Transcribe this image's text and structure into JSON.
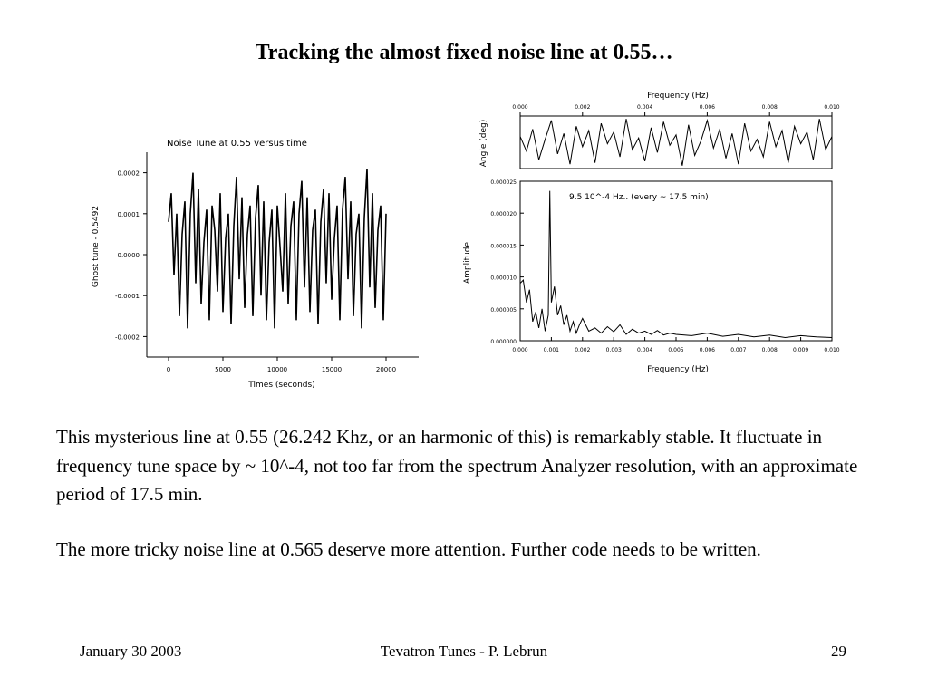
{
  "slide": {
    "title": "Tracking the almost fixed noise line at 0.55…",
    "paragraphs": [
      "This mysterious line at 0.55 (26.242 Khz, or an harmonic of this)  is remarkably stable.  It fluctuate in frequency tune space by ~ 10^-4, not too far from the spectrum Analyzer resolution,  with an approximate period of 17.5 min.",
      "The more tricky noise line at 0.565 deserve more attention.  Further code needs to be written."
    ],
    "footer": {
      "date": "January 30  2003",
      "center": "Tevatron Tunes - P. Lebrun",
      "page": "29"
    }
  },
  "chart_data": [
    {
      "type": "line",
      "title": "Noise Tune at 0.55 versus time",
      "xlabel": "Times (seconds)",
      "ylabel": "Ghost tune - 0.5492",
      "xlim": [
        -2000,
        23000
      ],
      "ylim": [
        -0.00025,
        0.00025
      ],
      "x_ticks": [
        0,
        5000,
        10000,
        15000,
        20000
      ],
      "x_tick_labels": [
        "0",
        "5000",
        "10000",
        "15000",
        "20000"
      ],
      "y_ticks": [
        0.0002,
        0.0001,
        0.0,
        -0.0001,
        -0.0002
      ],
      "y_tick_labels": [
        "0.0002",
        "0.0001",
        "0.0000",
        "-0.0001",
        "-0.0002"
      ],
      "grid": false,
      "series": [
        {
          "color": "#000000",
          "x": [
            0,
            250,
            500,
            750,
            1000,
            1250,
            1500,
            1750,
            2000,
            2250,
            2500,
            2750,
            3000,
            3250,
            3500,
            3750,
            4000,
            4250,
            4500,
            4750,
            5000,
            5250,
            5500,
            5750,
            6000,
            6250,
            6500,
            6750,
            7000,
            7250,
            7500,
            7750,
            8000,
            8250,
            8500,
            8750,
            9000,
            9250,
            9500,
            9750,
            10000,
            10250,
            10500,
            10750,
            11000,
            11250,
            11500,
            11750,
            12000,
            12250,
            12500,
            12750,
            13000,
            13250,
            13500,
            13750,
            14000,
            14250,
            14500,
            14750,
            15000,
            15250,
            15500,
            15750,
            16000,
            16250,
            16500,
            16750,
            17000,
            17250,
            17500,
            17750,
            18000,
            18250,
            18500,
            18750,
            19000,
            19250,
            19500,
            19750,
            20000
          ],
          "y": [
            8e-05,
            0.00015,
            -5e-05,
            0.0001,
            -0.00015,
            5e-05,
            0.00013,
            -0.00018,
            0.0001,
            0.0002,
            -7e-05,
            0.00016,
            -0.00012,
            3e-05,
            0.00011,
            -0.00016,
            0.00012,
            6e-05,
            -9e-05,
            0.00015,
            -0.00014,
            4e-05,
            0.0001,
            -0.00017,
            7e-05,
            0.00019,
            -6e-05,
            0.00014,
            -0.00013,
            5e-05,
            0.00012,
            -0.00015,
            9e-05,
            0.00017,
            -0.0001,
            0.00013,
            -0.00016,
            3e-05,
            0.00011,
            -0.00018,
            0.00012,
            2e-05,
            -9e-05,
            0.00015,
            -0.00012,
            7e-05,
            0.00013,
            -0.00016,
            0.0001,
            0.00018,
            -8e-05,
            0.00014,
            -0.00014,
            6e-05,
            0.00011,
            -0.00017,
            8e-05,
            0.00016,
            -7e-05,
            0.00015,
            -0.00011,
            4e-05,
            0.00012,
            -0.00016,
            0.00011,
            0.00019,
            -6e-05,
            0.00013,
            -0.00015,
            5e-05,
            0.0001,
            -0.00018,
            9e-05,
            0.00021,
            -8e-05,
            0.00015,
            -0.00013,
            6e-05,
            0.00012,
            -0.00016,
            0.0001
          ]
        }
      ]
    },
    {
      "type": "line",
      "title": "",
      "xlabel": "",
      "top_axis_label": "Frequency (Hz)",
      "ylabel": "Angle (deg)",
      "xlim": [
        0,
        0.01
      ],
      "top_ticks": [
        0,
        0.002,
        0.004,
        0.006,
        0.008,
        0.01
      ],
      "top_tick_labels": [
        "0.000",
        "0.002",
        "0.004",
        "0.006",
        "0.008",
        "0.010"
      ],
      "grid": false,
      "series": [
        {
          "color": "#000000",
          "x": [
            0,
            0.0002,
            0.0004,
            0.0006,
            0.0008,
            0.001,
            0.0012,
            0.0014,
            0.0016,
            0.0018,
            0.002,
            0.0022,
            0.0024,
            0.0026,
            0.0028,
            0.003,
            0.0032,
            0.0034,
            0.0036,
            0.0038,
            0.004,
            0.0042,
            0.0044,
            0.0046,
            0.0048,
            0.005,
            0.0052,
            0.0054,
            0.0056,
            0.0058,
            0.006,
            0.0062,
            0.0064,
            0.0066,
            0.0068,
            0.007,
            0.0072,
            0.0074,
            0.0076,
            0.0078,
            0.008,
            0.0082,
            0.0084,
            0.0086,
            0.0088,
            0.009,
            0.0092,
            0.0094,
            0.0096,
            0.0098,
            0.01
          ],
          "y": [
            40,
            -60,
            90,
            -120,
            20,
            150,
            -80,
            60,
            -150,
            110,
            -30,
            80,
            -140,
            130,
            -10,
            70,
            -100,
            160,
            -50,
            30,
            -130,
            100,
            -70,
            140,
            -20,
            50,
            -160,
            120,
            -90,
            10,
            150,
            -40,
            90,
            -110,
            60,
            -150,
            130,
            -60,
            20,
            -100,
            140,
            -30,
            80,
            -140,
            110,
            -10,
            70,
            -120,
            160,
            -50,
            40
          ],
          "ylim": [
            -180,
            180
          ]
        }
      ]
    },
    {
      "type": "line",
      "title": "9.5 10^-4 Hz.. (every ~ 17.5 min)",
      "xlabel": "Frequency (Hz)",
      "ylabel": "Amplitude",
      "xlim": [
        0,
        0.01
      ],
      "ylim": [
        0,
        2.5e-05
      ],
      "x_ticks": [
        0,
        0.001,
        0.002,
        0.003,
        0.004,
        0.005,
        0.006,
        0.007,
        0.008,
        0.009,
        0.01
      ],
      "x_tick_labels": [
        "0.000",
        "0.001",
        "0.002",
        "0.003",
        "0.004",
        "0.005",
        "0.006",
        "0.007",
        "0.008",
        "0.009",
        "0.010"
      ],
      "y_ticks": [
        0,
        5e-06,
        1e-05,
        1.5e-05,
        2e-05,
        2.5e-05
      ],
      "y_tick_labels": [
        "0.000000",
        "0.000005",
        "0.000010",
        "0.000015",
        "0.000020",
        "0.000025"
      ],
      "grid": false,
      "series": [
        {
          "color": "#000000",
          "x": [
            0,
            0.0001,
            0.0002,
            0.0003,
            0.0004,
            0.0005,
            0.0006,
            0.0007,
            0.0008,
            0.0009,
            0.00095,
            0.001,
            0.0011,
            0.0012,
            0.0013,
            0.0014,
            0.0015,
            0.0016,
            0.0017,
            0.0018,
            0.0019,
            0.002,
            0.0022,
            0.0024,
            0.0026,
            0.0028,
            0.003,
            0.0032,
            0.0034,
            0.0036,
            0.0038,
            0.004,
            0.0042,
            0.0044,
            0.0046,
            0.0048,
            0.005,
            0.0055,
            0.006,
            0.0065,
            0.007,
            0.0075,
            0.008,
            0.0085,
            0.009,
            0.0095,
            0.01
          ],
          "y": [
            9e-06,
            9.5e-06,
            6e-06,
            8e-06,
            3e-06,
            4.5e-06,
            2e-06,
            5e-06,
            1.5e-06,
            4e-06,
            2.35e-05,
            6e-06,
            8.5e-06,
            4e-06,
            5.5e-06,
            2.5e-06,
            4e-06,
            1.5e-06,
            3e-06,
            1.2e-06,
            2.5e-06,
            3.5e-06,
            1.5e-06,
            2e-06,
            1.2e-06,
            2.2e-06,
            1.4e-06,
            2.5e-06,
            1e-06,
            1.8e-06,
            1.2e-06,
            1.5e-06,
            1e-06,
            1.6e-06,
            9e-07,
            1.2e-06,
            1e-06,
            8e-07,
            1.2e-06,
            7e-07,
            1e-06,
            6e-07,
            9e-07,
            5e-07,
            8e-07,
            6e-07,
            5e-07
          ]
        }
      ]
    }
  ]
}
